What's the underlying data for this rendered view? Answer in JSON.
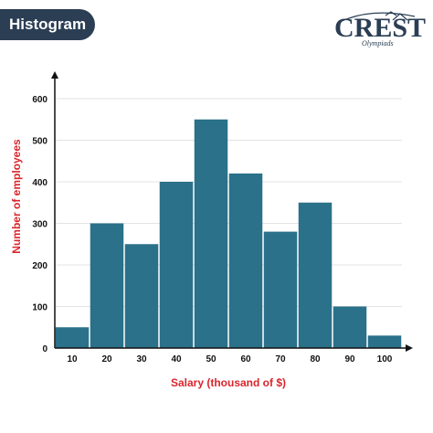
{
  "banner": {
    "title": "Histogram"
  },
  "logo": {
    "text": "CREST",
    "subtitle": "Olympiads",
    "color": "#2b3e54"
  },
  "chart_data": {
    "type": "bar",
    "categories": [
      "10",
      "20",
      "30",
      "40",
      "50",
      "60",
      "70",
      "80",
      "90",
      "100"
    ],
    "values": [
      50,
      300,
      250,
      400,
      550,
      420,
      280,
      350,
      100,
      30
    ],
    "title": "",
    "xlabel": "Salary (thousand of $)",
    "ylabel": "Number of employees",
    "ylim": [
      0,
      600
    ],
    "yticks": [
      0,
      100,
      200,
      300,
      400,
      500,
      600
    ],
    "grid": true,
    "bar_color": "#2a7189",
    "label_color": "#d9262c"
  }
}
